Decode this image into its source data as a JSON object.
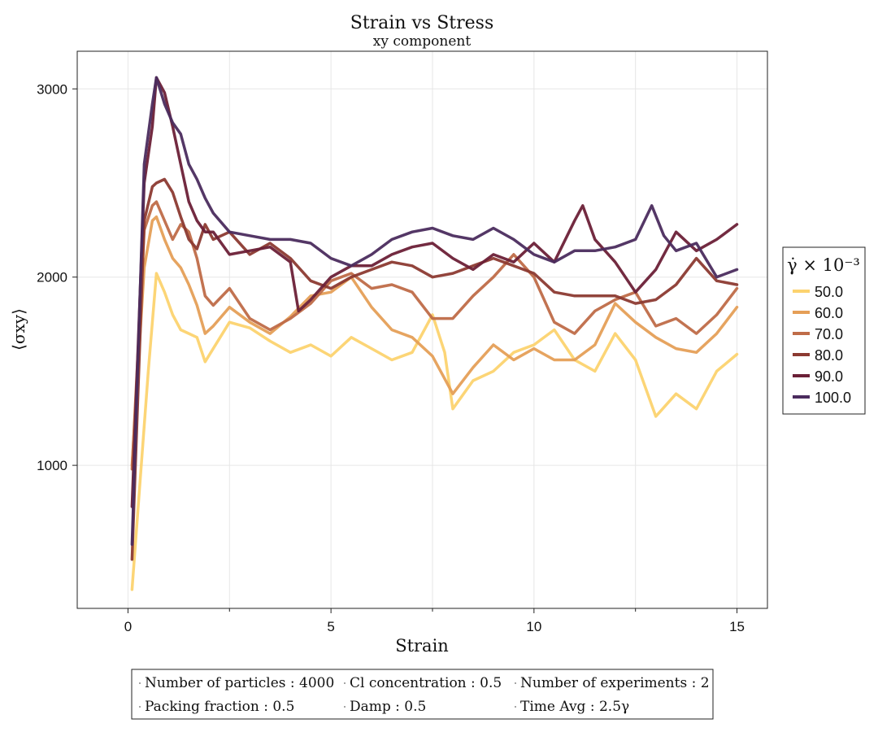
{
  "chart_data": {
    "type": "line",
    "title": "Strain vs Stress",
    "subtitle": "xy component",
    "xlabel": "Strain",
    "ylabel": "⟨σxy⟩",
    "xlim": [
      -1.25,
      15.75
    ],
    "ylim": [
      240,
      3200
    ],
    "xticks": [
      0,
      5,
      10,
      15
    ],
    "yticks": [
      1000,
      2000,
      3000
    ],
    "grid": true,
    "legend": {
      "title": "γ̇ × 10⁻³",
      "placement": "right"
    },
    "series": [
      {
        "name": "50.0",
        "color": "#fcd36f",
        "x": [
          0.1,
          0.5,
          0.7,
          0.9,
          1.1,
          1.3,
          1.5,
          1.7,
          1.9,
          2.1,
          2.5,
          3.0,
          3.5,
          4.0,
          4.5,
          5.0,
          5.5,
          6.0,
          6.5,
          7.0,
          7.5,
          7.8,
          8.0,
          8.5,
          9.0,
          9.5,
          10.0,
          10.5,
          11.0,
          11.5,
          12.0,
          12.5,
          13.0,
          13.5,
          14.0,
          14.5,
          15.0
        ],
        "y": [
          340,
          1500,
          2020,
          1920,
          1800,
          1720,
          1700,
          1680,
          1550,
          1620,
          1760,
          1730,
          1660,
          1600,
          1640,
          1580,
          1680,
          1620,
          1560,
          1600,
          1800,
          1600,
          1300,
          1450,
          1500,
          1600,
          1640,
          1720,
          1560,
          1500,
          1700,
          1560,
          1260,
          1380,
          1300,
          1500,
          1590
        ]
      },
      {
        "name": "60.0",
        "color": "#e59f57",
        "x": [
          0.1,
          0.4,
          0.6,
          0.7,
          0.9,
          1.1,
          1.3,
          1.5,
          1.7,
          1.9,
          2.1,
          2.5,
          3.0,
          3.5,
          4.0,
          4.5,
          5.0,
          5.5,
          6.0,
          6.5,
          7.0,
          7.5,
          8.0,
          8.5,
          9.0,
          9.5,
          10.0,
          10.5,
          11.0,
          11.5,
          12.0,
          12.5,
          13.0,
          13.5,
          14.0,
          14.5,
          15.0
        ],
        "y": [
          1000,
          2050,
          2300,
          2320,
          2200,
          2100,
          2050,
          1960,
          1850,
          1700,
          1740,
          1840,
          1760,
          1700,
          1790,
          1900,
          1920,
          2000,
          1840,
          1720,
          1680,
          1580,
          1380,
          1520,
          1640,
          1560,
          1620,
          1560,
          1560,
          1640,
          1860,
          1760,
          1680,
          1620,
          1600,
          1700,
          1840
        ]
      },
      {
        "name": "70.0",
        "color": "#bf6c48",
        "x": [
          0.1,
          0.4,
          0.6,
          0.7,
          0.9,
          1.1,
          1.3,
          1.5,
          1.7,
          1.9,
          2.1,
          2.5,
          3.0,
          3.5,
          4.0,
          4.5,
          5.0,
          5.5,
          6.0,
          6.5,
          7.0,
          7.5,
          8.0,
          8.5,
          9.0,
          9.5,
          10.0,
          10.5,
          11.0,
          11.5,
          12.0,
          12.5,
          13.0,
          13.5,
          14.0,
          14.5,
          15.0
        ],
        "y": [
          980,
          2250,
          2380,
          2400,
          2300,
          2200,
          2280,
          2240,
          2100,
          1900,
          1850,
          1940,
          1780,
          1720,
          1780,
          1860,
          1980,
          2020,
          1940,
          1960,
          1920,
          1780,
          1780,
          1900,
          2000,
          2120,
          2000,
          1760,
          1700,
          1820,
          1880,
          1920,
          1740,
          1780,
          1700,
          1800,
          1940
        ]
      },
      {
        "name": "80.0",
        "color": "#8c3a31",
        "x": [
          0.1,
          0.4,
          0.6,
          0.7,
          0.9,
          1.1,
          1.3,
          1.5,
          1.7,
          1.9,
          2.1,
          2.5,
          3.0,
          3.5,
          4.0,
          4.5,
          5.0,
          5.5,
          6.0,
          6.5,
          7.0,
          7.5,
          8.0,
          8.5,
          9.0,
          9.5,
          10.0,
          10.5,
          11.0,
          11.5,
          12.0,
          12.5,
          13.0,
          13.5,
          14.0,
          14.5,
          15.0
        ],
        "y": [
          500,
          2300,
          2480,
          2500,
          2520,
          2450,
          2320,
          2200,
          2150,
          2280,
          2200,
          2240,
          2120,
          2180,
          2100,
          1980,
          1940,
          2000,
          2040,
          2080,
          2060,
          2000,
          2020,
          2060,
          2100,
          2060,
          2020,
          1920,
          1900,
          1900,
          1900,
          1860,
          1880,
          1960,
          2100,
          1980,
          1960
        ]
      },
      {
        "name": "90.0",
        "color": "#6b2037",
        "x": [
          0.1,
          0.4,
          0.6,
          0.7,
          0.9,
          1.1,
          1.3,
          1.5,
          1.7,
          1.9,
          2.1,
          2.5,
          3.0,
          3.5,
          4.0,
          4.2,
          4.5,
          5.0,
          5.5,
          6.0,
          6.5,
          7.0,
          7.5,
          8.0,
          8.5,
          9.0,
          9.5,
          10.0,
          10.5,
          11.0,
          11.2,
          11.5,
          12.0,
          12.5,
          13.0,
          13.5,
          14.0,
          14.5,
          15.0
        ],
        "y": [
          780,
          2500,
          2800,
          3060,
          2980,
          2800,
          2600,
          2400,
          2300,
          2240,
          2240,
          2120,
          2140,
          2160,
          2080,
          1820,
          1880,
          2000,
          2060,
          2060,
          2120,
          2160,
          2180,
          2100,
          2040,
          2120,
          2080,
          2180,
          2080,
          2300,
          2380,
          2200,
          2080,
          1920,
          2040,
          2240,
          2140,
          2200,
          2280
        ]
      },
      {
        "name": "100.0",
        "color": "#4b2c5e",
        "x": [
          0.1,
          0.4,
          0.6,
          0.7,
          0.9,
          1.1,
          1.3,
          1.5,
          1.7,
          1.9,
          2.1,
          2.5,
          3.0,
          3.5,
          4.0,
          4.5,
          5.0,
          5.5,
          6.0,
          6.5,
          7.0,
          7.5,
          8.0,
          8.5,
          9.0,
          9.5,
          10.0,
          10.5,
          11.0,
          11.5,
          12.0,
          12.5,
          12.9,
          13.2,
          13.5,
          14.0,
          14.5,
          15.0
        ],
        "y": [
          580,
          2600,
          2920,
          3060,
          2920,
          2820,
          2760,
          2600,
          2520,
          2420,
          2340,
          2240,
          2220,
          2200,
          2200,
          2180,
          2100,
          2060,
          2120,
          2200,
          2240,
          2260,
          2220,
          2200,
          2260,
          2200,
          2120,
          2080,
          2140,
          2140,
          2160,
          2200,
          2380,
          2220,
          2140,
          2180,
          2000,
          2040
        ]
      }
    ],
    "info_box": [
      [
        "Number of particles : 4000",
        "Cl concentration : 0.5",
        "Number of experiments : 2"
      ],
      [
        "Packing fraction : 0.5",
        "Damp : 0.5",
        "Time Avg : 2.5γ"
      ]
    ]
  }
}
